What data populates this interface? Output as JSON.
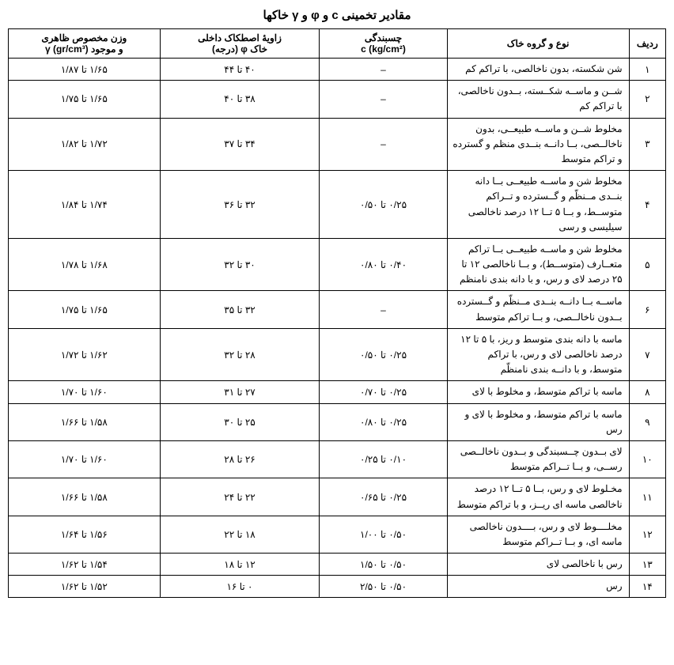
{
  "title": "مقادیر تخمینی c و φ و γ خاکها",
  "columns": {
    "row": "ردیف",
    "type": "نوع و گروه خاک",
    "cohesion_line1": "چسبندگی",
    "cohesion_line2": "(kg/cm²) c",
    "friction_line1": "زاویهٔ اصطکاک داخلی",
    "friction_line2": "خاک φ (درجه)",
    "weight_line1": "وزن مخصوص ظاهری",
    "weight_line2": "و موجود γ (gr/cm³)"
  },
  "rows": [
    {
      "n": "۱",
      "type": "شن شکسته، بدون ناخالصی، با تراکم کم",
      "c": "–",
      "phi": "۴۰ تا ۴۴",
      "w": "۱/۶۵ تا ۱/۸۷"
    },
    {
      "n": "۲",
      "type": "شــن و ماســه شکــسته، بــدون ناخالصی، با تراکم کم",
      "c": "–",
      "phi": "۳۸ تا ۴۰",
      "w": "۱/۶۵ تا ۱/۷۵"
    },
    {
      "n": "۳",
      "type": "مخلوط شــن و ماســه طبیعــی، بدون ناخالــصی، بــا دانــه بنــدی منظم و گسترده و تراکم متوسط",
      "c": "–",
      "phi": "۳۴ تا ۳۷",
      "w": "۱/۷۲ تا ۱/۸۲"
    },
    {
      "n": "۴",
      "type": "مخلوط شن و ماســه طبیعــی بــا دانه بنــدی مــنظّم و گــسترده و تــراکم متوســط، و بــا ۵ تــا ۱۲ درصد ناخالصی سیلیسی و رسی",
      "c": "۰/۲۵ تا ۰/۵۰",
      "phi": "۳۲ تا ۳۶",
      "w": "۱/۷۴ تا ۱/۸۴"
    },
    {
      "n": "۵",
      "type": "مخلوط شن و ماســه طبیعــی بــا تراکم متعــارف (متوســط)، و بــا ناخالصی ۱۲ تا ۲۵ درصد لای و رس، و با دانه بندی نامنظم",
      "c": "۰/۴۰ تا ۰/۸۰",
      "phi": "۳۰ تا ۳۲",
      "w": "۱/۶۸ تا ۱/۷۸"
    },
    {
      "n": "۶",
      "type": "ماســه بــا دانــه بنــدی مــنظّم و گــسترده بــدون ناخالــصی، و بــا تراکم متوسط",
      "c": "–",
      "phi": "۳۲ تا ۳۵",
      "w": "۱/۶۵ تا ۱/۷۵"
    },
    {
      "n": "۷",
      "type": "ماسه با دانه بندی متوسط و ریز، با ۵ تا ۱۲ درصد ناخالصی لای و رس، با تراکم متوسط، و با دانــه بندی نامنظّم",
      "c": "۰/۲۵ تا ۰/۵۰",
      "phi": "۲۸ تا ۳۲",
      "w": "۱/۶۲ تا ۱/۷۲"
    },
    {
      "n": "۸",
      "type": "ماسه با تراکم متوسط، و مخلوط با لای",
      "c": "۰/۲۵ تا ۰/۷۰",
      "phi": "۲۷ تا ۳۱",
      "w": "۱/۶۰ تا ۱/۷۰"
    },
    {
      "n": "۹",
      "type": "ماسه با تراکم متوسط، و مخلوط با لای و رس",
      "c": "۰/۲۵ تا ۰/۸۰",
      "phi": "۲۵ تا ۳۰",
      "w": "۱/۵۸ تا ۱/۶۶"
    },
    {
      "n": "۱۰",
      "type": "لای بــدون چــسبندگی و بــدون ناخالــصی رســی، و بــا تــراکم متوسط",
      "c": "۰/۱۰ تا ۰/۲۵",
      "phi": "۲۶ تا ۲۸",
      "w": "۱/۶۰ تا ۱/۷۰"
    },
    {
      "n": "۱۱",
      "type": "مخـلوط لای و رس، بــا ۵ تــا ۱۲ درصد ناخالصی ماسه ای ریــز، و با تراکم متوسط",
      "c": "۰/۲۵ تا ۰/۶۵",
      "phi": "۲۲ تا ۲۴",
      "w": "۱/۵۸ تا ۱/۶۶"
    },
    {
      "n": "۱۲",
      "type": "مخلــــوط لای و رس، بــــدون ناخالصی ماسه ای، و بــا تــراکم متوسط",
      "c": "۰/۵۰ تا ۱/۰۰",
      "phi": "۱۸ تا ۲۲",
      "w": "۱/۵۶ تا ۱/۶۴"
    },
    {
      "n": "۱۳",
      "type": "رس با ناخالصی لای",
      "c": "۰/۵۰ تا ۱/۵۰",
      "phi": "۱۲ تا ۱۸",
      "w": "۱/۵۴ تا ۱/۶۲"
    },
    {
      "n": "۱۴",
      "type": "رس",
      "c": "۰/۵۰ تا ۲/۵۰",
      "phi": "۰ تا ۱۶",
      "w": "۱/۵۲ تا ۱/۶۲"
    }
  ],
  "style": {
    "font_family": "Tahoma",
    "title_fontsize": 15,
    "cell_fontsize": 12,
    "border_color": "#000000",
    "background_color": "#ffffff",
    "text_color": "#000000"
  }
}
